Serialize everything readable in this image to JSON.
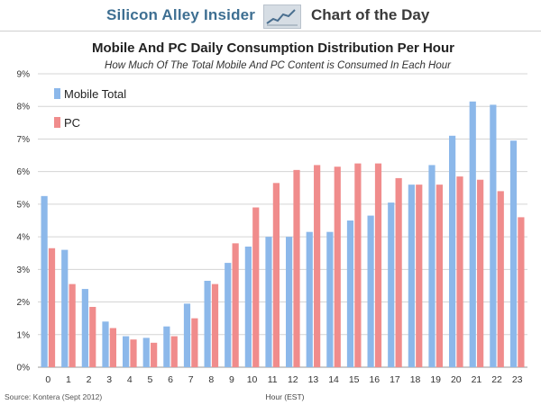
{
  "header": {
    "brand": "Silicon Alley Insider",
    "section": "Chart of the Day",
    "logo_icon": "trend-line-icon"
  },
  "source": "Source: Kontera (Sept 2012)",
  "colors": {
    "mobile": "#8cb8ea",
    "pc": "#f08c8c",
    "brand": "#3e6f92",
    "grid": "#d4d4d4"
  },
  "chart_data": {
    "type": "bar",
    "title": "Mobile And PC Daily Consumption Distribution Per Hour",
    "subtitle": "How Much Of The Total Mobile And PC Content is Consumed In Each Hour",
    "xlabel": "Hour (EST)",
    "ylabel": "",
    "ylim": [
      0,
      9
    ],
    "yticks": [
      "0%",
      "1%",
      "2%",
      "3%",
      "4%",
      "5%",
      "6%",
      "7%",
      "8%",
      "9%"
    ],
    "grid": true,
    "legend_position": "top-left",
    "categories": [
      "0",
      "1",
      "2",
      "3",
      "4",
      "5",
      "6",
      "7",
      "8",
      "9",
      "10",
      "11",
      "12",
      "13",
      "14",
      "15",
      "16",
      "17",
      "18",
      "19",
      "20",
      "21",
      "22",
      "23"
    ],
    "series": [
      {
        "name": "Mobile Total",
        "values": [
          5.25,
          3.6,
          2.4,
          1.4,
          0.95,
          0.9,
          1.25,
          1.95,
          2.65,
          3.2,
          3.7,
          4.0,
          4.0,
          4.15,
          4.15,
          4.5,
          4.65,
          5.05,
          5.6,
          6.2,
          7.1,
          8.15,
          8.05,
          6.95
        ]
      },
      {
        "name": "PC",
        "values": [
          3.65,
          2.55,
          1.85,
          1.2,
          0.85,
          0.75,
          0.95,
          1.5,
          2.55,
          3.8,
          4.9,
          5.65,
          6.05,
          6.2,
          6.15,
          6.25,
          6.25,
          5.8,
          5.6,
          5.6,
          5.85,
          5.75,
          5.4,
          4.6
        ]
      }
    ]
  }
}
